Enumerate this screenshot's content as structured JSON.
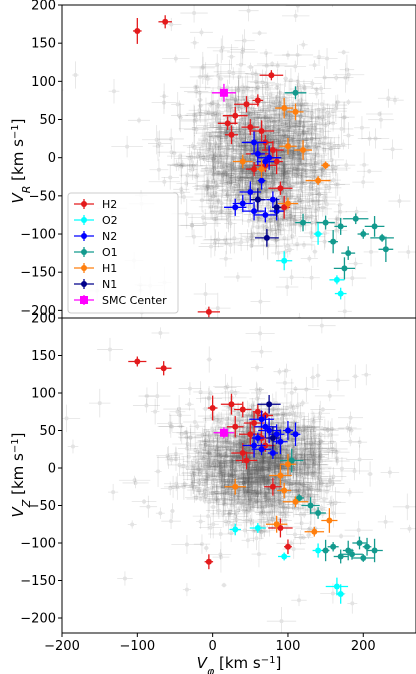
{
  "chart_data": [
    {
      "type": "scatter",
      "panel": "top",
      "xlabel": "",
      "ylabel": "V_R [km s^-1]",
      "ylabel_main": "V",
      "ylabel_sub": "R",
      "ylabel_unit": " [km s",
      "ylabel_exp": "−1",
      "ylabel_close": "]",
      "xlim": [
        -200,
        270
      ],
      "ylim": [
        -210,
        200
      ],
      "yticks": [
        200,
        150,
        100,
        50,
        0,
        -50,
        -100,
        -150,
        -200
      ],
      "ytick_labels": [
        "200",
        "150",
        "100",
        "50",
        "0",
        "−50",
        "−100",
        "−150",
        "−200"
      ],
      "legend_position": "lower-left",
      "legend": [
        {
          "label": "H2",
          "color": "#e31a1c",
          "marker": "o"
        },
        {
          "label": "O2",
          "color": "#00ffff",
          "marker": "o"
        },
        {
          "label": "N2",
          "color": "#0000ff",
          "marker": "o"
        },
        {
          "label": "O1",
          "color": "#139a8e",
          "marker": "o"
        },
        {
          "label": "H1",
          "color": "#ff7f0e",
          "marker": "o"
        },
        {
          "label": "N1",
          "color": "#00008b",
          "marker": "o"
        },
        {
          "label": "SMC Center",
          "color": "#ff00ff",
          "marker": "s"
        }
      ],
      "background": {
        "description": "dense cloud of gray points with error bars",
        "color": "#808080",
        "center": [
          70,
          0
        ],
        "spread": [
          45,
          50
        ]
      },
      "series": [
        {
          "name": "H2",
          "color": "#e31a1c",
          "points": [
            [
              -100,
              166
            ],
            [
              -63,
              178
            ],
            [
              78,
              108
            ],
            [
              60,
              75
            ],
            [
              45,
              70
            ],
            [
              30,
              55
            ],
            [
              20,
              45
            ],
            [
              25,
              30
            ],
            [
              50,
              40
            ],
            [
              65,
              35
            ],
            [
              70,
              20
            ],
            [
              80,
              10
            ],
            [
              60,
              5
            ],
            [
              75,
              0
            ],
            [
              85,
              -5
            ],
            [
              55,
              -15
            ],
            [
              70,
              -10
            ],
            [
              90,
              -40
            ],
            [
              -5,
              -202
            ],
            [
              95,
              -65
            ]
          ]
        },
        {
          "name": "O2",
          "color": "#00ffff",
          "points": [
            [
              95,
              -135
            ],
            [
              140,
              -100
            ],
            [
              165,
              -160
            ],
            [
              170,
              -178
            ]
          ]
        },
        {
          "name": "N2",
          "color": "#0000ff",
          "points": [
            [
              55,
              20
            ],
            [
              60,
              5
            ],
            [
              70,
              -5
            ],
            [
              75,
              0
            ],
            [
              65,
              -30
            ],
            [
              50,
              -45
            ],
            [
              60,
              -55
            ],
            [
              40,
              -60
            ],
            [
              30,
              -65
            ],
            [
              80,
              -55
            ],
            [
              85,
              -70
            ],
            [
              70,
              -75
            ],
            [
              55,
              -70
            ]
          ]
        },
        {
          "name": "O1",
          "color": "#139a8e",
          "points": [
            [
              110,
              85
            ],
            [
              120,
              -85
            ],
            [
              150,
              -85
            ],
            [
              170,
              -90
            ],
            [
              190,
              -80
            ],
            [
              200,
              -100
            ],
            [
              215,
              -90
            ],
            [
              225,
              -105
            ],
            [
              230,
              -120
            ],
            [
              180,
              -125
            ],
            [
              175,
              -145
            ],
            [
              160,
              -110
            ]
          ]
        },
        {
          "name": "H1",
          "color": "#ff7f0e",
          "points": [
            [
              95,
              65
            ],
            [
              110,
              60
            ],
            [
              100,
              15
            ],
            [
              120,
              10
            ],
            [
              150,
              -10
            ],
            [
              140,
              -30
            ],
            [
              40,
              -5
            ],
            [
              65,
              -15
            ],
            [
              100,
              -60
            ]
          ]
        },
        {
          "name": "N1",
          "color": "#00008b",
          "points": [
            [
              72,
              -105
            ],
            [
              60,
              -55
            ],
            [
              85,
              -65
            ]
          ]
        },
        {
          "name": "SMC Center",
          "color": "#ff00ff",
          "points": [
            [
              15,
              85
            ]
          ]
        }
      ]
    },
    {
      "type": "scatter",
      "panel": "bottom",
      "xlabel": "V_φ [km s^-1]",
      "xlabel_main": "V",
      "xlabel_sub": "φ",
      "xlabel_unit": " [km s",
      "xlabel_exp": "−1",
      "xlabel_close": "]",
      "ylabel": "V_Z [km s^-1]",
      "ylabel_main": "V",
      "ylabel_sub": "Z",
      "ylabel_unit": " [km s",
      "ylabel_exp": "−1",
      "ylabel_close": "]",
      "xlim": [
        -200,
        270
      ],
      "ylim": [
        -220,
        200
      ],
      "xticks": [
        -200,
        -100,
        0,
        100,
        200
      ],
      "xtick_labels": [
        "−200",
        "−100",
        "0",
        "100",
        "200"
      ],
      "yticks": [
        200,
        150,
        100,
        50,
        0,
        -50,
        -100,
        -150,
        -200
      ],
      "ytick_labels": [
        "200",
        "150",
        "100",
        "50",
        "0",
        "−50",
        "−100",
        "−150",
        "−200"
      ],
      "background": {
        "description": "dense cloud of gray points with error bars",
        "color": "#808080",
        "center": [
          60,
          5
        ],
        "spread": [
          45,
          35
        ]
      },
      "series": [
        {
          "name": "H2",
          "color": "#e31a1c",
          "points": [
            [
              -100,
              142
            ],
            [
              -65,
              133
            ],
            [
              25,
              85
            ],
            [
              0,
              80
            ],
            [
              40,
              78
            ],
            [
              60,
              75
            ],
            [
              70,
              70
            ],
            [
              55,
              60
            ],
            [
              30,
              55
            ],
            [
              50,
              45
            ],
            [
              65,
              40
            ],
            [
              40,
              20
            ],
            [
              45,
              10
            ],
            [
              70,
              30
            ],
            [
              80,
              -25
            ],
            [
              90,
              -80
            ],
            [
              100,
              -105
            ],
            [
              -5,
              -125
            ]
          ]
        },
        {
          "name": "O2",
          "color": "#00ffff",
          "points": [
            [
              30,
              -82
            ],
            [
              60,
              -80
            ],
            [
              95,
              -118
            ],
            [
              140,
              -110
            ],
            [
              165,
              -158
            ],
            [
              170,
              -168
            ]
          ]
        },
        {
          "name": "N2",
          "color": "#0000ff",
          "points": [
            [
              65,
              65
            ],
            [
              70,
              55
            ],
            [
              60,
              40
            ],
            [
              75,
              50
            ],
            [
              85,
              45
            ],
            [
              100,
              50
            ],
            [
              110,
              45
            ],
            [
              90,
              35
            ],
            [
              55,
              30
            ],
            [
              65,
              25
            ],
            [
              80,
              20
            ]
          ]
        },
        {
          "name": "O1",
          "color": "#139a8e",
          "points": [
            [
              105,
              10
            ],
            [
              115,
              -40
            ],
            [
              130,
              -50
            ],
            [
              140,
              -60
            ],
            [
              180,
              -110
            ],
            [
              195,
              -100
            ],
            [
              205,
              -105
            ],
            [
              215,
              -110
            ],
            [
              200,
              -120
            ],
            [
              185,
              -115
            ],
            [
              170,
              -118
            ],
            [
              160,
              -105
            ],
            [
              150,
              -110
            ]
          ]
        },
        {
          "name": "H1",
          "color": "#ff7f0e",
          "points": [
            [
              100,
              5
            ],
            [
              90,
              -10
            ],
            [
              95,
              -30
            ],
            [
              30,
              -25
            ],
            [
              110,
              -45
            ],
            [
              135,
              -85
            ],
            [
              155,
              -70
            ],
            [
              85,
              -75
            ]
          ]
        },
        {
          "name": "N1",
          "color": "#00008b",
          "points": [
            [
              75,
              85
            ],
            [
              80,
              40
            ]
          ]
        },
        {
          "name": "SMC Center",
          "color": "#ff00ff",
          "points": [
            [
              15,
              47
            ]
          ]
        }
      ]
    }
  ]
}
